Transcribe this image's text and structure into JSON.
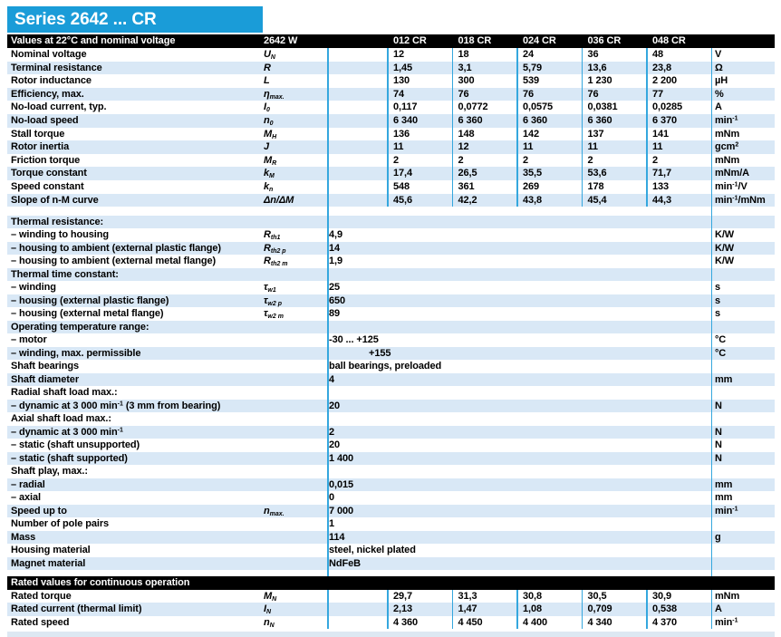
{
  "title": "Series 2642 ... CR",
  "colors": {
    "accent_blue": "#1a9cd8",
    "row_shade": "#d9e8f6",
    "divider_blue": "#35a7de",
    "header_bar": "#000000",
    "bottom_strip": "#dde8f2"
  },
  "header": {
    "left": "Values at 22°C and nominal voltage",
    "model": "2642 W",
    "columns": [
      "012 CR",
      "018 CR",
      "024 CR",
      "036 CR",
      "048 CR"
    ]
  },
  "sections": [
    {
      "type": "grid",
      "rows": [
        {
          "label": "Nominal voltage",
          "sym": "U~N~",
          "vals": [
            "12",
            "18",
            "24",
            "36",
            "48"
          ],
          "unit": "V",
          "shade": false
        },
        {
          "label": "Terminal resistance",
          "sym": "R",
          "vals": [
            "1,45",
            "3,1",
            "5,79",
            "13,6",
            "23,8"
          ],
          "unit": "Ω",
          "shade": true
        },
        {
          "label": "Rotor inductance",
          "sym": "L",
          "vals": [
            "130",
            "300",
            "539",
            "1 230",
            "2 200"
          ],
          "unit": "µH",
          "shade": false
        },
        {
          "label": "Efficiency, max.",
          "sym": "η~max.~",
          "vals": [
            "74",
            "76",
            "76",
            "76",
            "77"
          ],
          "unit": "%",
          "shade": true
        },
        {
          "label": "No-load current, typ.",
          "sym": "I~0~",
          "vals": [
            "0,117",
            "0,0772",
            "0,0575",
            "0,0381",
            "0,0285"
          ],
          "unit": "A",
          "shade": false
        },
        {
          "label": "No-load speed",
          "sym": "n~0~",
          "vals": [
            "6 340",
            "6 360",
            "6 360",
            "6 360",
            "6 370"
          ],
          "unit": "min^-1^",
          "shade": true
        },
        {
          "label": "Stall torque",
          "sym": "M~H~",
          "vals": [
            "136",
            "148",
            "142",
            "137",
            "141"
          ],
          "unit": "mNm",
          "shade": false
        },
        {
          "label": "Rotor inertia",
          "sym": "J",
          "vals": [
            "11",
            "12",
            "11",
            "11",
            "11"
          ],
          "unit": "gcm^2^",
          "shade": true
        },
        {
          "label": "Friction torque",
          "sym": "M~R~",
          "vals": [
            "2",
            "2",
            "2",
            "2",
            "2"
          ],
          "unit": "mNm",
          "shade": false
        },
        {
          "label": "Torque constant",
          "sym": "k~M~",
          "vals": [
            "17,4",
            "26,5",
            "35,5",
            "53,6",
            "71,7"
          ],
          "unit": "mNm/A",
          "shade": true
        },
        {
          "label": "Speed constant",
          "sym": "k~n~",
          "vals": [
            "548",
            "361",
            "269",
            "178",
            "133"
          ],
          "unit": "min^-1^/V",
          "shade": false
        },
        {
          "label": "Slope of n-M curve",
          "sym": "Δn/ΔM",
          "vals": [
            "45,6",
            "42,2",
            "43,8",
            "45,4",
            "44,3"
          ],
          "unit": "min^-1^/mNm",
          "shade": true
        }
      ]
    },
    {
      "type": "gap-a"
    },
    {
      "type": "wide",
      "rows": [
        {
          "label": "Thermal resistance:",
          "shade": true
        },
        {
          "label": "– winding to housing",
          "sym": "R~th1~",
          "wide": "4,9",
          "unit": "K/W",
          "shade": false
        },
        {
          "label": "– housing to ambient (external plastic flange)",
          "sym": "R~th2 p~",
          "wide": "14",
          "unit": "K/W",
          "shade": true
        },
        {
          "label": "– housing to ambient (external metal flange)",
          "sym": "R~th2 m~",
          "wide": "1,9",
          "unit": "K/W",
          "shade": false
        },
        {
          "label": "Thermal time constant:",
          "shade": true
        },
        {
          "label": "– winding",
          "sym": "τ~w1~",
          "wide": "25",
          "unit": "s",
          "shade": false
        },
        {
          "label": "– housing (external plastic flange)",
          "sym": "τ~w2 p~",
          "wide": "650",
          "unit": "s",
          "shade": true
        },
        {
          "label": "– housing (external metal flange)",
          "sym": "τ~w2 m~",
          "wide": "89",
          "unit": "s",
          "shade": false
        },
        {
          "label": "Operating temperature range:",
          "shade": true
        },
        {
          "label": "– motor",
          "wide": "-30 ... +125",
          "unit": "°C",
          "shade": false
        },
        {
          "label": "– winding, max. permissible",
          "wide": "+155",
          "ind": true,
          "unit": "°C",
          "shade": true
        },
        {
          "label": "Shaft bearings",
          "wide": "ball bearings, preloaded",
          "shade": false
        },
        {
          "label": "Shaft diameter",
          "wide": "4",
          "unit": "mm",
          "shade": true
        },
        {
          "label": "Radial shaft load max.:",
          "shade": false
        },
        {
          "label": "– dynamic at 3 000 min^-1^ (3 mm from bearing)",
          "wide": "20",
          "unit": "N",
          "shade": true
        },
        {
          "label": "Axial shaft load max.:",
          "shade": false
        },
        {
          "label": "– dynamic at 3 000 min^-1^",
          "wide": "2",
          "unit": "N",
          "shade": true
        },
        {
          "label": "– static (shaft unsupported)",
          "wide": "20",
          "unit": "N",
          "shade": false
        },
        {
          "label": "– static (shaft supported)",
          "wide": "1 400",
          "unit": "N",
          "shade": true
        },
        {
          "label": "Shaft play, max.:",
          "shade": false
        },
        {
          "label": "– radial",
          "wide": "0,015",
          "unit": "mm",
          "shade": true
        },
        {
          "label": "– axial",
          "wide": "0",
          "unit": "mm",
          "shade": false
        },
        {
          "label": "Speed up to",
          "sym": "n~max.~",
          "wide": "7 000",
          "unit": "min^-1^",
          "shade": true
        },
        {
          "label": "Number of pole pairs",
          "wide": "1",
          "shade": false
        },
        {
          "label": "Mass",
          "wide": "114",
          "unit": "g",
          "shade": true
        },
        {
          "label": "Housing material",
          "wide": "steel, nickel plated",
          "shade": false
        },
        {
          "label": "Magnet material",
          "wide": "NdFeB",
          "shade": true
        }
      ]
    },
    {
      "type": "gap-b"
    },
    {
      "type": "bar",
      "label": "Rated values for continuous operation"
    },
    {
      "type": "grid",
      "rows": [
        {
          "label": "Rated torque",
          "sym": "M~N~",
          "vals": [
            "29,7",
            "31,3",
            "30,8",
            "30,5",
            "30,9"
          ],
          "unit": "mNm",
          "shade": false
        },
        {
          "label": "Rated current (thermal limit)",
          "sym": "I~N~",
          "vals": [
            "2,13",
            "1,47",
            "1,08",
            "0,709",
            "0,538"
          ],
          "unit": "A",
          "shade": true
        },
        {
          "label": "Rated speed",
          "sym": "n~N~",
          "vals": [
            "4 360",
            "4 450",
            "4 400",
            "4 340",
            "4 370"
          ],
          "unit": "min^-1^",
          "shade": false
        }
      ]
    },
    {
      "type": "gap-c"
    },
    {
      "type": "strip"
    }
  ]
}
